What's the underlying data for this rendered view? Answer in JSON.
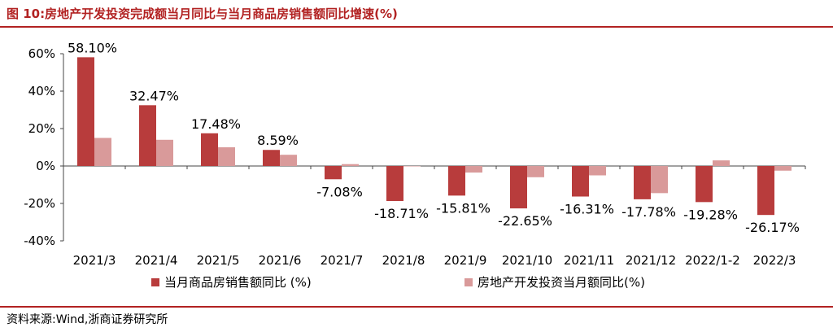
{
  "header": {
    "title": "图 10:房地产开发投资完成额当月同比与当月商品房销售额同比增速(%)"
  },
  "footer": {
    "source": "资料来源:Wind,浙商证券研究所"
  },
  "chart_data": {
    "type": "bar",
    "categories": [
      "2021/3",
      "2021/4",
      "2021/5",
      "2021/6",
      "2021/7",
      "2021/8",
      "2021/9",
      "2021/10",
      "2021/11",
      "2021/12",
      "2022/1-2",
      "2022/3"
    ],
    "series": [
      {
        "name": "当月商品房销售额同比 (%)",
        "color": "#b83c3c",
        "values": [
          58.1,
          32.47,
          17.48,
          8.59,
          -7.08,
          -18.71,
          -15.81,
          -22.65,
          -16.31,
          -17.78,
          -19.28,
          -26.17
        ],
        "labels": [
          "58.10%",
          "32.47%",
          "17.48%",
          "8.59%",
          "-7.08%",
          "-18.71%",
          "-15.81%",
          "-22.65%",
          "-16.31%",
          "-17.78%",
          "-19.28%",
          "-26.17%"
        ]
      },
      {
        "name": "房地产开发投资当月额同比(%)",
        "color": "#d99a9a",
        "values": [
          15.0,
          14.0,
          10.0,
          6.0,
          1.0,
          0.0,
          -3.5,
          -6.0,
          -5.0,
          -14.5,
          3.0,
          -2.5
        ]
      }
    ],
    "y_ticks": [
      "60%",
      "40%",
      "20%",
      "0%",
      "-20%",
      "-40%"
    ],
    "ylim": [
      -40,
      60
    ],
    "legend_position": "bottom",
    "grid": false
  }
}
